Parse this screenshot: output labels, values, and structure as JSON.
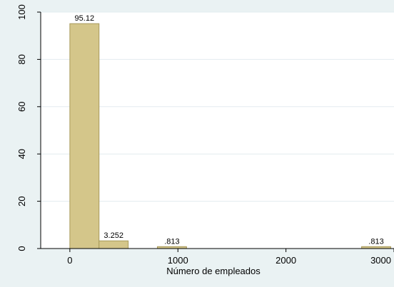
{
  "chart_data": {
    "type": "bar",
    "title": "",
    "xlabel": "Número de empleados",
    "ylabel": "",
    "bin_width": 270,
    "bars": [
      {
        "x_start": 0,
        "x_end": 270,
        "value": 95.12,
        "label": "95.12"
      },
      {
        "x_start": 270,
        "x_end": 540,
        "value": 3.252,
        "label": "3.252"
      },
      {
        "x_start": 810,
        "x_end": 1080,
        "value": 0.813,
        "label": ".813"
      },
      {
        "x_start": 2700,
        "x_end": 2970,
        "value": 0.813,
        "label": ".813"
      }
    ],
    "xlim": [
      -270,
      3000
    ],
    "ylim": [
      0,
      100
    ],
    "xticks": [
      0,
      1000,
      2000,
      3000
    ],
    "xtick_labels": [
      "0",
      "1000",
      "2000",
      "3000"
    ],
    "yticks": [
      0,
      20,
      40,
      60,
      80,
      100
    ],
    "ytick_labels": [
      "0",
      "20",
      "40",
      "60",
      "80",
      "100"
    ],
    "grid": true,
    "legend": "none",
    "colors": {
      "bar_fill": "#d4c68a",
      "bar_stroke": "#a89a5c",
      "plot_background": "#ffffff",
      "outer_background": "#eaf2f3",
      "grid": "#e3ecef"
    }
  }
}
